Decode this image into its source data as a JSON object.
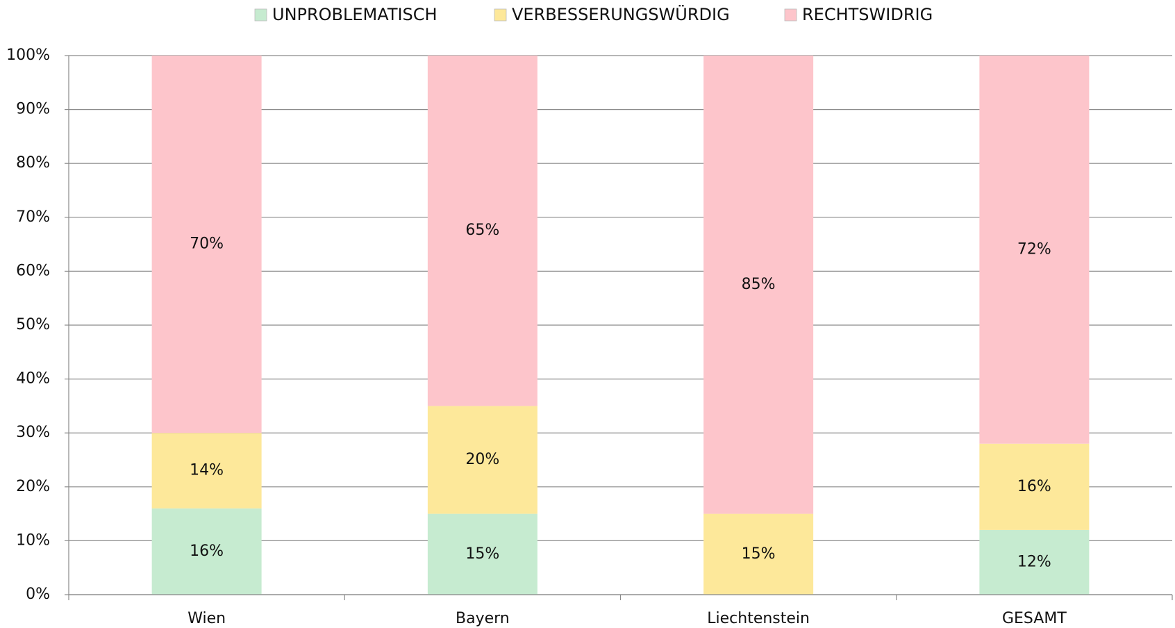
{
  "chart_data": {
    "type": "stacked_bar",
    "categories": [
      "Wien",
      "Bayern",
      "Liechtenstein",
      "GESAMT"
    ],
    "series": [
      {
        "name": "UNPROBLEMATISCH",
        "color": "#c6ebd0",
        "values": [
          16,
          15,
          0,
          12
        ],
        "value_labels": [
          "16%",
          "15%",
          null,
          "12%"
        ]
      },
      {
        "name": "VERBESSERUNGSWÜRDIG",
        "color": "#fde89a",
        "values": [
          14,
          20,
          15,
          16
        ],
        "value_labels": [
          "14%",
          "20%",
          "15%",
          "16%"
        ]
      },
      {
        "name": "RECHTSWIDRIG",
        "color": "#fdc5cb",
        "values": [
          70,
          65,
          85,
          72
        ],
        "value_labels": [
          "70%",
          "65%",
          "85%",
          "72%"
        ]
      }
    ],
    "ylim": [
      0,
      100
    ],
    "yticks": [
      {
        "value": 0,
        "label": "0%"
      },
      {
        "value": 10,
        "label": "10%"
      },
      {
        "value": 20,
        "label": "20%"
      },
      {
        "value": 30,
        "label": "30%"
      },
      {
        "value": 40,
        "label": "40%"
      },
      {
        "value": 50,
        "label": "50%"
      },
      {
        "value": 60,
        "label": "60%"
      },
      {
        "value": 70,
        "label": "70%"
      },
      {
        "value": 80,
        "label": "80%"
      },
      {
        "value": 90,
        "label": "90%"
      },
      {
        "value": 100,
        "label": "100%"
      }
    ],
    "grid": true,
    "legend": "top"
  }
}
